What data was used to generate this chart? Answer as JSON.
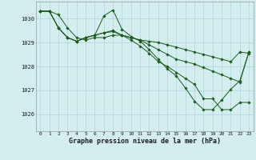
{
  "title": "",
  "xlabel": "Graphe pression niveau de la mer (hPa)",
  "background_color": "#d4eef0",
  "grid_color": "#b0d4d8",
  "line_color": "#1a5c1a",
  "marker_color": "#1a5c1a",
  "xlim": [
    -0.5,
    23.5
  ],
  "ylim": [
    1025.3,
    1030.7
  ],
  "yticks": [
    1026,
    1027,
    1028,
    1029,
    1030
  ],
  "xticks": [
    0,
    1,
    2,
    3,
    4,
    5,
    6,
    7,
    8,
    9,
    10,
    11,
    12,
    13,
    14,
    15,
    16,
    17,
    18,
    19,
    20,
    21,
    22,
    23
  ],
  "series": [
    [
      1030.3,
      1030.3,
      1030.15,
      1029.6,
      1029.2,
      1029.1,
      1029.2,
      1029.2,
      1029.3,
      1029.3,
      1029.2,
      1029.1,
      1029.05,
      1029.0,
      1028.9,
      1028.8,
      1028.7,
      1028.6,
      1028.5,
      1028.4,
      1028.3,
      1028.2,
      1028.6,
      1028.55
    ],
    [
      1030.3,
      1030.3,
      1029.6,
      1029.2,
      1029.05,
      1029.2,
      1029.3,
      1029.4,
      1029.5,
      1029.3,
      1029.2,
      1029.1,
      1028.9,
      1028.7,
      1028.5,
      1028.3,
      1028.2,
      1028.1,
      1027.95,
      1027.8,
      1027.65,
      1027.5,
      1027.35,
      1028.6
    ],
    [
      1030.3,
      1030.3,
      1029.6,
      1029.2,
      1029.05,
      1029.2,
      1029.3,
      1030.1,
      1030.35,
      1029.55,
      1029.25,
      1029.05,
      1028.7,
      1028.3,
      1027.9,
      1027.6,
      1027.1,
      1026.55,
      1026.2,
      1026.2,
      1026.6,
      1027.05,
      1027.4,
      1028.6
    ],
    [
      1030.3,
      1030.3,
      1029.6,
      1029.2,
      1029.05,
      1029.2,
      1029.3,
      1029.4,
      1029.45,
      1029.3,
      1029.1,
      1028.85,
      1028.55,
      1028.2,
      1028.0,
      1027.75,
      1027.5,
      1027.25,
      1026.65,
      1026.65,
      1026.2,
      1026.2,
      1026.5,
      1026.5
    ]
  ]
}
